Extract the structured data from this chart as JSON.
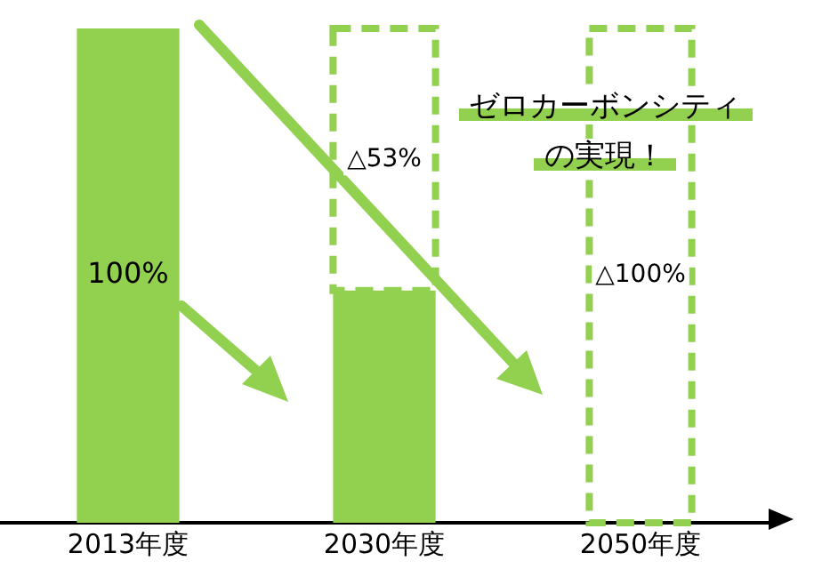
{
  "chart_data": {
    "type": "bar",
    "ylim": [
      0,
      100
    ],
    "tick_labels": "x",
    "stacked": true,
    "categories": [
      "2013年度",
      "2030年度",
      "2050年度"
    ],
    "series": [
      {
        "color": "#92d050",
        "values": [
          100,
          47,
          0
        ],
        "value_labels": [
          "100%",
          null,
          null
        ]
      },
      {
        "color": "#92d050",
        "line_style": "dashed",
        "values": [
          0,
          53,
          100
        ],
        "value_labels": [
          null,
          "△53%",
          "△100%"
        ]
      }
    ],
    "annotations": [
      "ゼロカーボンシティ",
      "の実現！"
    ],
    "grid": false,
    "legend": false
  }
}
